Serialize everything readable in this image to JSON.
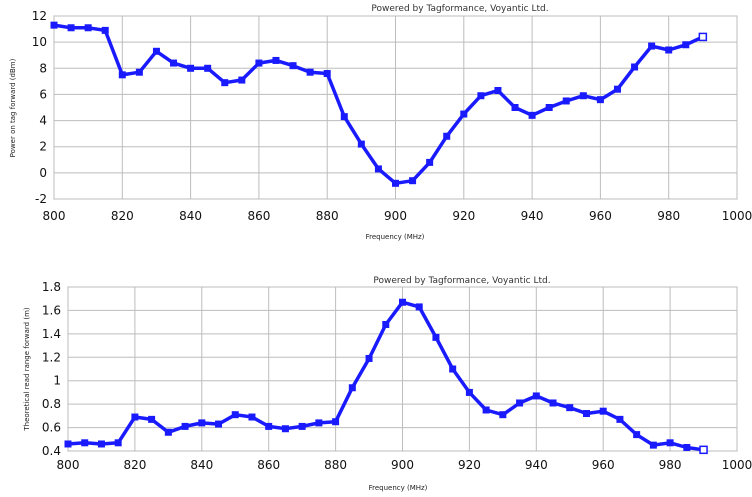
{
  "chart_data": [
    {
      "type": "line",
      "title": "Powered by Tagformance, Voyantic Ltd.",
      "xlabel": "Frequency (MHz)",
      "ylabel": "Power on tag forward (dBm)",
      "xlim": [
        800,
        1000
      ],
      "ylim": [
        -2,
        12
      ],
      "xticks": [
        800,
        820,
        840,
        860,
        880,
        900,
        920,
        940,
        960,
        980,
        1000
      ],
      "yticks": [
        -2,
        0,
        2,
        4,
        6,
        8,
        10,
        12
      ],
      "grid": true,
      "series_color": "#1a1aff",
      "x": [
        800,
        805,
        810,
        815,
        820,
        825,
        830,
        835,
        840,
        845,
        850,
        855,
        860,
        865,
        870,
        875,
        880,
        885,
        890,
        895,
        900,
        905,
        910,
        915,
        920,
        925,
        930,
        935,
        940,
        945,
        950,
        955,
        960,
        965,
        970,
        975,
        980,
        985,
        990
      ],
      "y": [
        11.3,
        11.1,
        11.1,
        10.9,
        7.5,
        7.7,
        9.3,
        8.4,
        8.0,
        8.0,
        6.9,
        7.1,
        8.4,
        8.6,
        8.2,
        7.7,
        7.6,
        4.3,
        2.2,
        0.3,
        -0.8,
        -0.6,
        0.8,
        2.8,
        4.5,
        5.9,
        6.3,
        5.0,
        4.4,
        5.0,
        5.5,
        5.9,
        5.6,
        6.4,
        8.1,
        9.7,
        9.4,
        9.8,
        10.4
      ]
    },
    {
      "type": "line",
      "title": "Powered by Tagformance, Voyantic Ltd.",
      "xlabel": "Frequency (MHz)",
      "ylabel": "Theoretical read range forward (m)",
      "xlim": [
        800,
        1000
      ],
      "ylim": [
        0.4,
        1.8
      ],
      "xticks": [
        800,
        820,
        840,
        860,
        880,
        900,
        920,
        940,
        960,
        980,
        1000
      ],
      "yticks": [
        0.4,
        0.6,
        0.8,
        1,
        1.2,
        1.4,
        1.6,
        1.8
      ],
      "grid": true,
      "series_color": "#1a1aff",
      "x": [
        800,
        805,
        810,
        815,
        820,
        825,
        830,
        835,
        840,
        845,
        850,
        855,
        860,
        865,
        870,
        875,
        880,
        885,
        890,
        895,
        900,
        905,
        910,
        915,
        920,
        925,
        930,
        935,
        940,
        945,
        950,
        955,
        960,
        965,
        970,
        975,
        980,
        985,
        990
      ],
      "y": [
        0.46,
        0.47,
        0.46,
        0.47,
        0.69,
        0.67,
        0.56,
        0.61,
        0.64,
        0.63,
        0.71,
        0.69,
        0.61,
        0.59,
        0.61,
        0.64,
        0.65,
        0.94,
        1.19,
        1.48,
        1.67,
        1.63,
        1.37,
        1.1,
        0.9,
        0.75,
        0.71,
        0.81,
        0.87,
        0.81,
        0.77,
        0.72,
        0.74,
        0.67,
        0.54,
        0.45,
        0.47,
        0.43,
        0.41
      ]
    }
  ]
}
